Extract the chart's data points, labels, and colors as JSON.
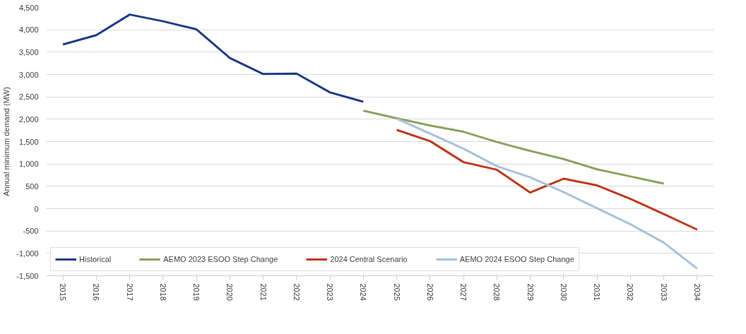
{
  "chart_data": {
    "type": "line",
    "ylabel": "Annual minimum demand (MW)",
    "categories": [
      "2015",
      "2016",
      "2017",
      "2018",
      "2019",
      "2020",
      "2021",
      "2022",
      "2023",
      "2024",
      "2025",
      "2026",
      "2027",
      "2028",
      "2029",
      "2030",
      "2031",
      "2032",
      "2033",
      "2034"
    ],
    "series": [
      {
        "name": "Historical",
        "color": "#1f3c88",
        "values": [
          3670,
          3880,
          4340,
          4190,
          4010,
          3370,
          3010,
          3020,
          2600,
          2390,
          null,
          null,
          null,
          null,
          null,
          null,
          null,
          null,
          null,
          null
        ]
      },
      {
        "name": "AEMO 2023 ESOO Step Change",
        "color": "#8da35e",
        "values": [
          null,
          null,
          null,
          null,
          null,
          null,
          null,
          null,
          null,
          2190,
          2020,
          1860,
          1720,
          1490,
          1290,
          1110,
          880,
          720,
          560,
          null
        ]
      },
      {
        "name": "2024 Central Scenario",
        "color": "#c0391b",
        "values": [
          null,
          null,
          null,
          null,
          null,
          null,
          null,
          null,
          null,
          null,
          1760,
          1510,
          1040,
          870,
          360,
          670,
          520,
          220,
          -120,
          -470
        ]
      },
      {
        "name": "AEMO 2024 ESOO Step Change",
        "color": "#a8c1d9",
        "values": [
          null,
          null,
          null,
          null,
          null,
          null,
          null,
          null,
          null,
          null,
          2010,
          1680,
          1340,
          950,
          700,
          370,
          10,
          -350,
          -760,
          -1340
        ]
      }
    ],
    "ylim": [
      -1500,
      4500
    ],
    "yticks": [
      {
        "value": -1500,
        "label": "-1,500"
      },
      {
        "value": -1000,
        "label": "-1,000"
      },
      -500,
      0,
      500,
      {
        "value": 1000,
        "label": "1,000"
      },
      {
        "value": 1500,
        "label": "1,500"
      },
      {
        "value": 2000,
        "label": "2,000"
      },
      {
        "value": 2500,
        "label": "2,500"
      },
      {
        "value": 3000,
        "label": "3,000"
      },
      {
        "value": 3500,
        "label": "3,500"
      },
      {
        "value": 4000,
        "label": "4,000"
      },
      {
        "value": 4500,
        "label": "4,500"
      }
    ],
    "grid": "y",
    "legend": "bottom",
    "marker": "none",
    "line_style": "solid"
  }
}
